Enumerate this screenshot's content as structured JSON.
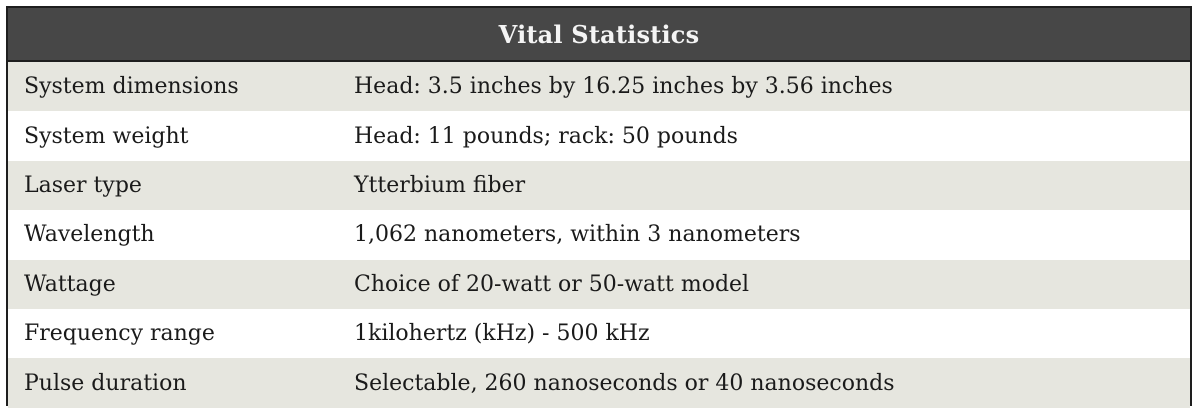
{
  "table": {
    "title": "Vital Statistics",
    "rows": [
      {
        "label": "System dimensions",
        "value": "Head: 3.5 inches by 16.25 inches by 3.56 inches"
      },
      {
        "label": "System weight",
        "value": "Head: 11 pounds; rack: 50 pounds"
      },
      {
        "label": "Laser type",
        "value": "Ytterbium fiber"
      },
      {
        "label": "Wavelength",
        "value": "1,062 nanometers, within 3 nanometers"
      },
      {
        "label": "Wattage",
        "value": "Choice of 20-watt or 50-watt model"
      },
      {
        "label": "Frequency range",
        "value": "1kilohertz (kHz) - 500 kHz"
      },
      {
        "label": "Pulse duration",
        "value": "Selectable, 260 nanoseconds or 40 nanoseconds"
      }
    ]
  },
  "colors": {
    "header_background": "#474747",
    "header_text": "#f4f4f4",
    "shaded_row": "#e6e6df",
    "plain_row": "#ffffff",
    "border": "#1e1e1e"
  }
}
